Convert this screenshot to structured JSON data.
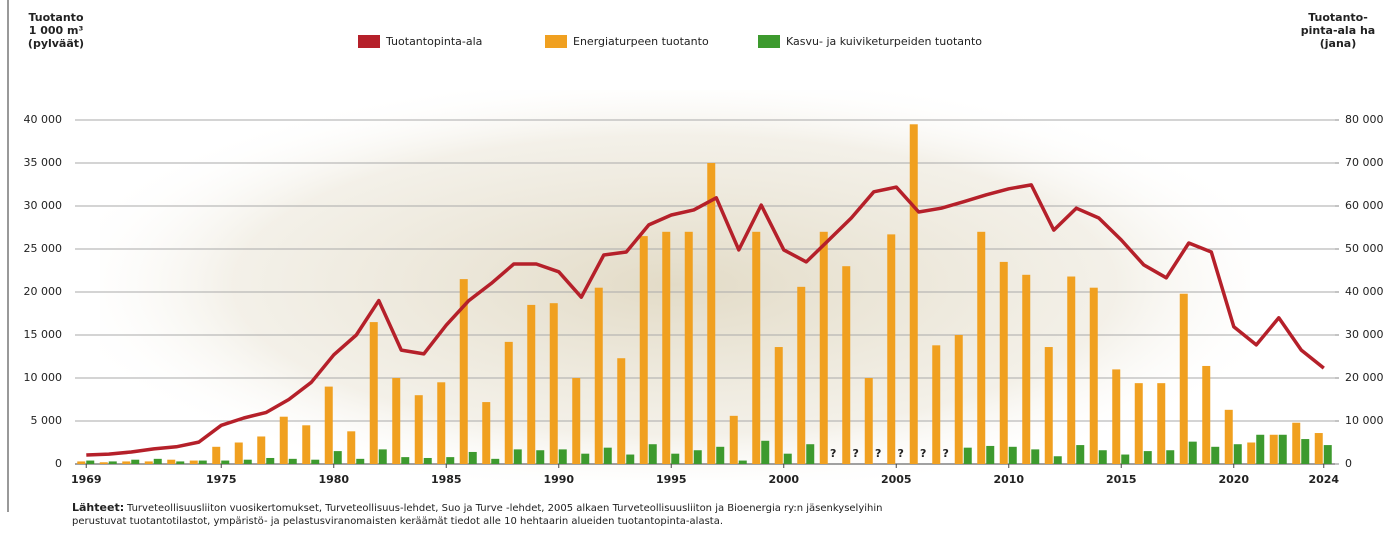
{
  "chart_data": {
    "type": "bar",
    "ylabel": [
      "Tuotanto",
      "1 000 m³",
      "(pylväät)"
    ],
    "y2label": [
      "Tuotanto-",
      "pinta-ala ha",
      "(jana)"
    ],
    "x": [
      1969,
      1970,
      1971,
      1972,
      1973,
      1974,
      1975,
      1976,
      1977,
      1978,
      1979,
      1980,
      1981,
      1982,
      1983,
      1984,
      1985,
      1986,
      1987,
      1988,
      1989,
      1990,
      1991,
      1992,
      1993,
      1994,
      1995,
      1996,
      1997,
      1998,
      1999,
      2000,
      2001,
      2002,
      2003,
      2004,
      2005,
      2006,
      2007,
      2008,
      2009,
      2010,
      2011,
      2012,
      2013,
      2014,
      2015,
      2016,
      2017,
      2018,
      2019,
      2020,
      2021,
      2022,
      2023,
      2024
    ],
    "xlim": [
      1968.5,
      2024.5
    ],
    "xticks": [
      1969,
      1975,
      1980,
      1985,
      1990,
      1995,
      2000,
      2005,
      2010,
      2015,
      2020,
      2024
    ],
    "ylim": [
      0,
      40000
    ],
    "yticks": [
      0,
      {
        "value": 5000,
        "label": "5 000"
      },
      {
        "value": 10000,
        "label": "10 000"
      },
      {
        "value": 15000,
        "label": "15 000"
      },
      {
        "value": 20000,
        "label": "20 000"
      },
      {
        "value": 25000,
        "label": "25 000"
      },
      {
        "value": 30000,
        "label": "30 000"
      },
      {
        "value": 35000,
        "label": "35 000"
      },
      {
        "value": 40000,
        "label": "40 000"
      }
    ],
    "y2lim": [
      0,
      80000
    ],
    "y2ticks": [
      0,
      {
        "value": 10000,
        "label": "10 000"
      },
      {
        "value": 20000,
        "label": "20 000"
      },
      {
        "value": 30000,
        "label": "30 000"
      },
      {
        "value": 40000,
        "label": "40 000"
      },
      {
        "value": 50000,
        "label": "50 000"
      },
      {
        "value": 60000,
        "label": "60 000"
      },
      {
        "value": 70000,
        "label": "70 000"
      },
      {
        "value": 80000,
        "label": "80 000"
      }
    ],
    "grid": true,
    "series": [
      {
        "name": "Tuotantopinta-ala",
        "type": "line",
        "axis": "y2",
        "color": "#b5202a",
        "values": [
          2100,
          2300,
          2800,
          3500,
          4000,
          5100,
          9000,
          10700,
          12000,
          15000,
          19000,
          25400,
          30000,
          38000,
          26500,
          25600,
          32300,
          38000,
          42000,
          46500,
          46500,
          44700,
          38800,
          48600,
          49300,
          55600,
          57900,
          59100,
          61900,
          49800,
          60200,
          49800,
          47000,
          52100,
          57200,
          63300,
          64400,
          58600,
          59500,
          61000,
          62600,
          64000,
          64900,
          54400,
          59500,
          57200,
          52100,
          46300,
          43300,
          51400,
          49300,
          31900,
          27700,
          34000,
          26500,
          22300
        ]
      },
      {
        "name": "Energiaturpeen tuotanto",
        "type": "bar",
        "color": "#f0a020",
        "values": [
          300,
          200,
          300,
          300,
          500,
          400,
          2000,
          2500,
          3200,
          5500,
          4500,
          9000,
          3800,
          16500,
          10000,
          8000,
          9500,
          21500,
          7200,
          14200,
          18500,
          18700,
          10000,
          20500,
          12300,
          26500,
          27000,
          27000,
          35000,
          5600,
          27000,
          13600,
          20600,
          27000,
          23000,
          10000,
          26700,
          39500,
          13800,
          15000,
          27000,
          23500,
          22000,
          13600,
          21800,
          20500,
          11000,
          9400,
          9400,
          19800,
          11400,
          6300,
          2500,
          3400,
          4800,
          3600
        ]
      },
      {
        "name": "Kasvu- ja kuiviketurpeiden tuotanto",
        "type": "bar",
        "color": "#3d9a2e",
        "values": [
          400,
          300,
          500,
          600,
          300,
          400,
          400,
          500,
          700,
          600,
          500,
          1500,
          600,
          1700,
          800,
          700,
          800,
          1400,
          600,
          1700,
          1600,
          1700,
          1200,
          1900,
          1100,
          2300,
          1200,
          1600,
          2000,
          400,
          2700,
          1200,
          2300,
          null,
          null,
          null,
          null,
          null,
          null,
          1900,
          2100,
          2000,
          1700,
          900,
          2200,
          1600,
          1100,
          1500,
          1600,
          2600,
          2000,
          2300,
          3400,
          3400,
          2900,
          2200
        ],
        "value_labels": [
          null,
          null,
          null,
          null,
          null,
          null,
          null,
          null,
          null,
          null,
          null,
          null,
          null,
          null,
          null,
          null,
          null,
          null,
          null,
          null,
          null,
          null,
          null,
          null,
          null,
          null,
          null,
          null,
          null,
          null,
          null,
          null,
          null,
          "?",
          "?",
          "?",
          "?",
          "?",
          "?",
          null,
          null,
          null,
          null,
          null,
          null,
          null,
          null,
          null,
          null,
          null,
          null,
          null,
          null,
          null,
          null,
          null
        ]
      }
    ],
    "legend": "top",
    "source_label": "Lähteet:",
    "source": [
      "Turveteollisuusliiton vuosikertomukset, Turveteollisuus-lehdet, Suo ja Turve -lehdet, 2005 alkaen Turveteollisuusliiton ja Bioenergia ry:n jäsenkyselyihin",
      "perustuvat tuotantotilastot, ympäristö- ja pelastusviranomaisten keräämät tiedot alle 10 hehtaarin alueiden tuotantopinta-alasta."
    ]
  }
}
